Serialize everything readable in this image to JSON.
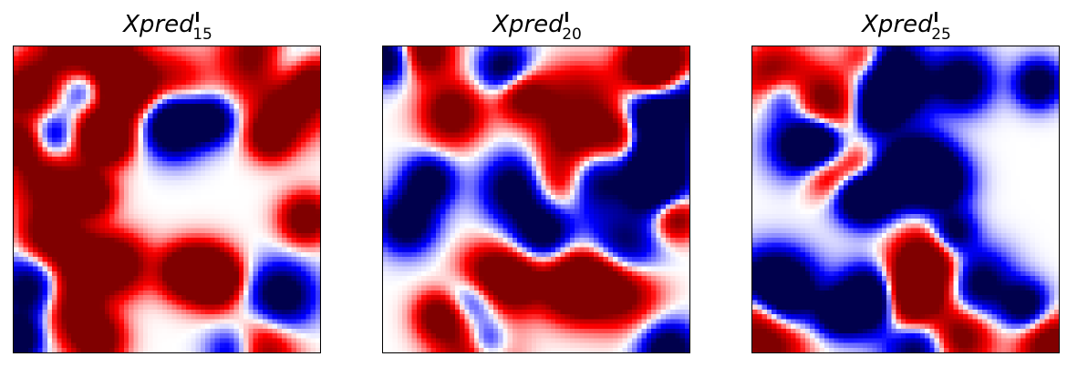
{
  "colormap": {
    "name": "seismic",
    "low_color": "#00004c",
    "mid_color": "#ffffff",
    "high_color": "#800000"
  },
  "panels": [
    {
      "title_base": "Xpred",
      "title_sup": "I",
      "title_sub": "15",
      "seed": 15
    },
    {
      "title_base": "Xpred",
      "title_sup": "I",
      "title_sub": "20",
      "seed": 20
    },
    {
      "title_base": "Xpred",
      "title_sup": "I",
      "title_sub": "25",
      "seed": 25
    }
  ]
}
